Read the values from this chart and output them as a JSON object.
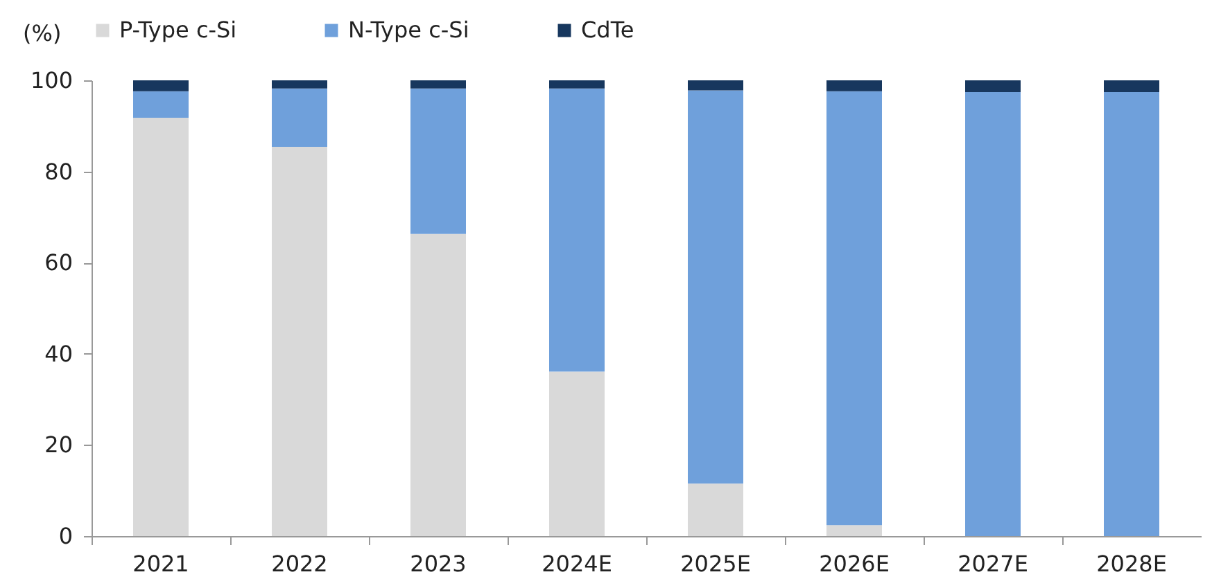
{
  "chart_data": {
    "type": "bar",
    "stacked": true,
    "ylabel": "(%)",
    "categories": [
      "2021",
      "2022",
      "2023",
      "2024E",
      "2025E",
      "2026E",
      "2027E",
      "2028E"
    ],
    "series": [
      {
        "name": "P-Type c-Si",
        "color": "#d9d9d9",
        "values": [
          91.8,
          85.4,
          66.3,
          36.1,
          11.5,
          2.4,
          0,
          0
        ]
      },
      {
        "name": "N-Type c-Si",
        "color": "#6fa0db",
        "values": [
          5.8,
          12.8,
          31.9,
          62.1,
          86.3,
          95.2,
          97.4,
          97.4
        ]
      },
      {
        "name": "CdTe",
        "color": "#17375e",
        "values": [
          2.4,
          1.8,
          1.8,
          1.8,
          2.2,
          2.4,
          2.6,
          2.6
        ]
      }
    ],
    "ylim": [
      0,
      100
    ],
    "yticks": [
      0,
      20,
      40,
      60,
      80,
      100
    ],
    "grid": false,
    "legend": "top"
  }
}
